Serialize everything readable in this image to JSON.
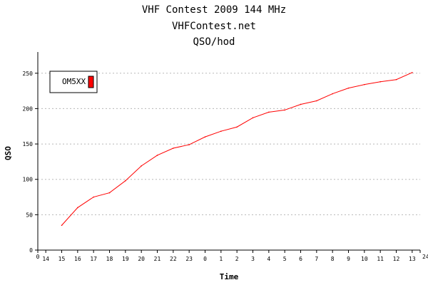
{
  "chart_data": {
    "type": "line",
    "title_lines": [
      "VHF Contest 2009 144 MHz",
      "VHFContest.net",
      "QSO/hod"
    ],
    "xlabel": "Time",
    "ylabel": "QSO",
    "ylim": [
      0,
      280
    ],
    "yticks": [
      0,
      50,
      100,
      150,
      200,
      250
    ],
    "ytick_labels": [
      "0",
      "50",
      "100",
      "150",
      "200",
      "250"
    ],
    "xlim": [
      0,
      24
    ],
    "x_tick_labels": [
      "0",
      "14",
      "15",
      "16",
      "17",
      "18",
      "19",
      "20",
      "21",
      "22",
      "23",
      "0",
      "1",
      "2",
      "3",
      "4",
      "5",
      "6",
      "7",
      "8",
      "9",
      "10",
      "11",
      "12",
      "13",
      "24"
    ],
    "x_tick_positions": [
      0,
      0.5,
      1.5,
      2.5,
      3.5,
      4.5,
      5.5,
      6.5,
      7.5,
      8.5,
      9.5,
      10.5,
      11.5,
      12.5,
      13.5,
      14.5,
      15.5,
      16.5,
      17.5,
      18.5,
      19.5,
      20.5,
      21.5,
      22.5,
      23.5,
      24
    ],
    "grid": true,
    "legend_position": "top-left",
    "series": [
      {
        "name": "OM5XX",
        "color": "#ff0000",
        "x": [
          1.5,
          2.5,
          3.5,
          4.5,
          5.5,
          6.5,
          7.5,
          8.5,
          9.5,
          10.5,
          11.5,
          12.5,
          13.5,
          14.5,
          15.5,
          16.5,
          17.5,
          18.5,
          19.5,
          20.5,
          21.5,
          22.5,
          23.5
        ],
        "y": [
          35,
          60,
          75,
          81,
          98,
          119,
          134,
          144,
          149,
          160,
          168,
          174,
          187,
          195,
          198,
          206,
          211,
          221,
          229,
          234,
          238,
          241,
          251
        ]
      }
    ]
  }
}
